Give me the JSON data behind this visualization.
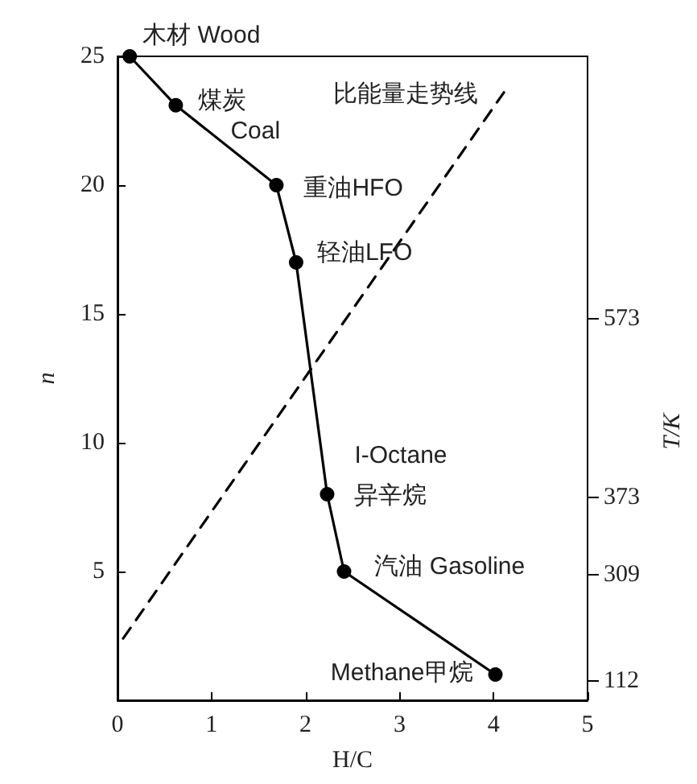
{
  "chart_data": {
    "type": "line",
    "xlabel": "H/C",
    "ylabel": "n",
    "y2label": "T/K",
    "xlim": [
      0,
      5
    ],
    "xticks": [
      0,
      1,
      2,
      3,
      4,
      5
    ],
    "ylim": [
      0,
      25
    ],
    "yticks": [
      {
        "value": 0,
        "label": null
      },
      5,
      10,
      15,
      20,
      25
    ],
    "grid": false,
    "series": [
      {
        "color": "#000000",
        "marker": "circle",
        "line_style": "solid",
        "x": [
          0.13,
          0.62,
          1.69,
          1.9,
          2.23,
          2.41,
          4.02
        ],
        "values": [
          25,
          23.1,
          20,
          17,
          8,
          5,
          1
        ]
      },
      {
        "color": "#000000",
        "marker": "none",
        "line_style": "dashed",
        "x": [
          0.06,
          4.11
        ],
        "values": [
          2.4,
          23.6
        ]
      }
    ],
    "annotations": [
      {
        "text": "木材 Wood",
        "x": 0.13,
        "y": 25
      },
      {
        "text": "煤炭",
        "x": 0.62,
        "y": 23.1
      },
      {
        "text": "Coal",
        "x": 0.62,
        "y": 23.1
      },
      {
        "text": "重油HFO",
        "x": 1.69,
        "y": 20
      },
      {
        "text": "轻油LFO",
        "x": 1.9,
        "y": 17
      },
      {
        "text": "I-Octane",
        "x": 2.23,
        "y": 8
      },
      {
        "text": "异辛烷",
        "x": 2.23,
        "y": 8
      },
      {
        "text": "汽油 Gasoline",
        "x": 2.41,
        "y": 5
      },
      {
        "text": "Methane甲烷",
        "x": 4.02,
        "y": 1
      },
      {
        "text": "比能量走势线",
        "x": 4.11,
        "y": 23.6
      },
      "573",
      "373",
      "309",
      "112"
    ]
  }
}
